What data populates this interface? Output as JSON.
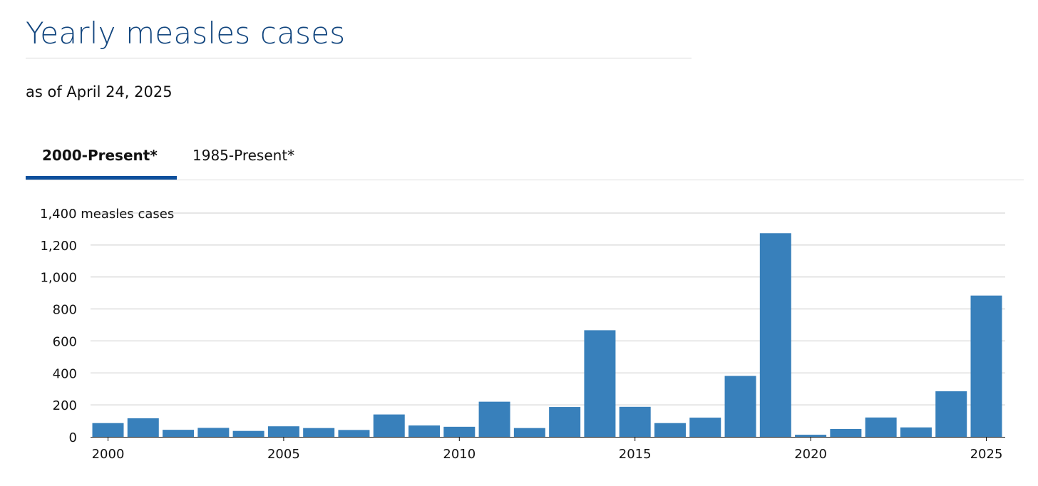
{
  "page": {
    "title": "Yearly measles cases",
    "subtitle": "as of April 24, 2025"
  },
  "tabs": [
    {
      "label": "2000-Present*",
      "active": true
    },
    {
      "label": "1985-Present*",
      "active": false
    }
  ],
  "chart_data": {
    "type": "bar",
    "title": "",
    "ylabel": "measles cases",
    "xlabel": "",
    "color": "#3880bb",
    "ylim": [
      0,
      1400
    ],
    "yticks": [
      0,
      200,
      400,
      600,
      800,
      1000,
      1200,
      1400
    ],
    "ytick_labels": [
      "0",
      "200",
      "400",
      "600",
      "800",
      "1,000",
      "1,200",
      "1,400"
    ],
    "top_tick_label": "1,400 measles cases",
    "xticks": [
      2000,
      2005,
      2010,
      2015,
      2020,
      2025
    ],
    "grid": true,
    "categories": [
      2000,
      2001,
      2002,
      2003,
      2004,
      2005,
      2006,
      2007,
      2008,
      2009,
      2010,
      2011,
      2012,
      2013,
      2014,
      2015,
      2016,
      2017,
      2018,
      2019,
      2020,
      2021,
      2022,
      2023,
      2024,
      2025
    ],
    "values": [
      86,
      116,
      44,
      56,
      37,
      66,
      55,
      43,
      140,
      71,
      63,
      220,
      55,
      187,
      667,
      188,
      86,
      120,
      381,
      1274,
      13,
      49,
      121,
      59,
      285,
      884
    ]
  }
}
